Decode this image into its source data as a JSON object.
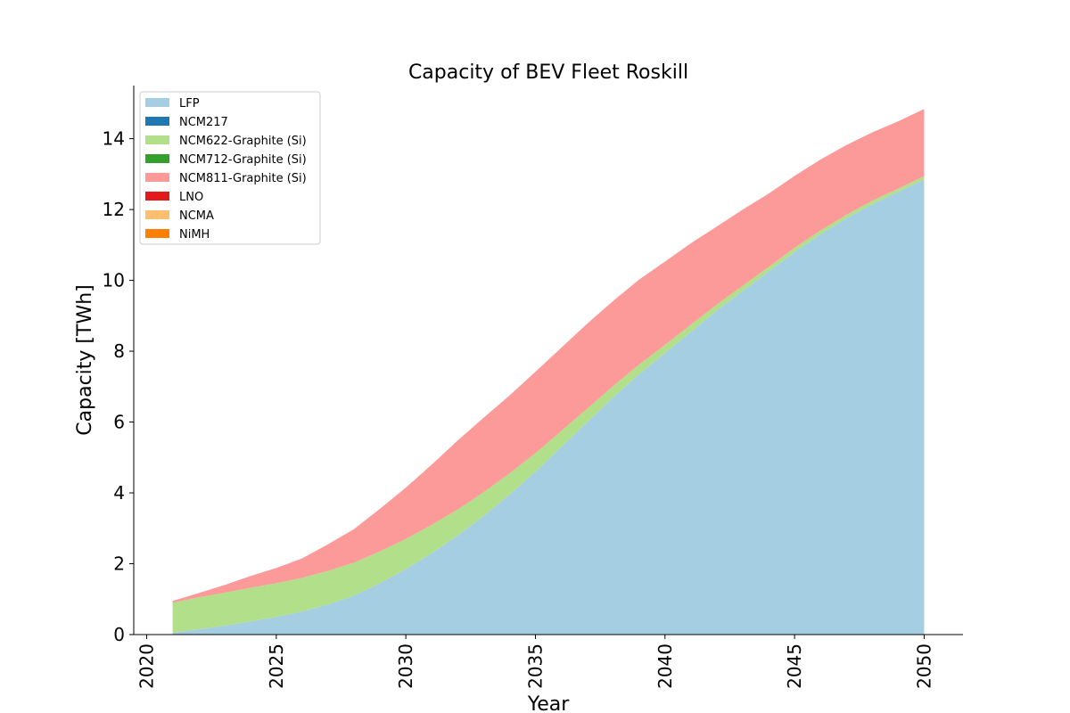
{
  "chart_data": {
    "type": "area",
    "stacked": true,
    "title": "Capacity of BEV Fleet Roskill",
    "xlabel": "Year",
    "ylabel": "Capacity [TWh]",
    "xlim": [
      2019.5,
      2051.5
    ],
    "ylim": [
      0,
      15.5
    ],
    "xticks": [
      2020,
      2025,
      2030,
      2035,
      2040,
      2045,
      2050
    ],
    "yticks": [
      0,
      2,
      4,
      6,
      8,
      10,
      12,
      14
    ],
    "grid": false,
    "legend_position": "top-left",
    "x": [
      2021,
      2022,
      2023,
      2024,
      2025,
      2026,
      2027,
      2028,
      2029,
      2030,
      2031,
      2032,
      2033,
      2034,
      2035,
      2036,
      2037,
      2038,
      2039,
      2040,
      2041,
      2042,
      2043,
      2044,
      2045,
      2046,
      2047,
      2048,
      2049,
      2050
    ],
    "series": [
      {
        "name": "LFP",
        "color": "#a6cee3",
        "values": [
          0.05,
          0.15,
          0.25,
          0.37,
          0.5,
          0.65,
          0.85,
          1.1,
          1.45,
          1.85,
          2.3,
          2.8,
          3.35,
          3.95,
          4.6,
          5.3,
          6.0,
          6.7,
          7.35,
          7.95,
          8.55,
          9.15,
          9.7,
          10.25,
          10.8,
          11.3,
          11.75,
          12.15,
          12.5,
          12.85
        ]
      },
      {
        "name": "NCM217",
        "color": "#1f78b4",
        "values": [
          0,
          0,
          0,
          0,
          0,
          0,
          0,
          0,
          0,
          0,
          0,
          0,
          0,
          0,
          0,
          0,
          0,
          0,
          0,
          0,
          0,
          0,
          0,
          0,
          0,
          0,
          0,
          0,
          0,
          0
        ]
      },
      {
        "name": "NCM622-Graphite (Si)",
        "color": "#b2df8a",
        "values": [
          0.85,
          0.9,
          0.93,
          0.95,
          0.95,
          0.95,
          0.95,
          0.93,
          0.9,
          0.85,
          0.8,
          0.73,
          0.67,
          0.6,
          0.52,
          0.45,
          0.38,
          0.32,
          0.27,
          0.23,
          0.2,
          0.17,
          0.15,
          0.13,
          0.12,
          0.11,
          0.1,
          0.1,
          0.09,
          0.09
        ]
      },
      {
        "name": "NCM712-Graphite (Si)",
        "color": "#33a02c",
        "values": [
          0,
          0,
          0,
          0,
          0,
          0,
          0,
          0,
          0,
          0,
          0,
          0,
          0,
          0,
          0,
          0,
          0,
          0,
          0,
          0,
          0,
          0,
          0,
          0,
          0,
          0,
          0,
          0,
          0,
          0
        ]
      },
      {
        "name": "NCM811-Graphite (Si)",
        "color": "#fb9a99",
        "values": [
          0.05,
          0.12,
          0.22,
          0.33,
          0.43,
          0.55,
          0.75,
          0.95,
          1.2,
          1.45,
          1.7,
          1.95,
          2.1,
          2.2,
          2.3,
          2.35,
          2.4,
          2.4,
          2.4,
          2.35,
          2.3,
          2.2,
          2.15,
          2.07,
          2.03,
          2.0,
          1.97,
          1.93,
          1.9,
          1.9
        ]
      },
      {
        "name": "LNO",
        "color": "#e31a1c",
        "values": [
          0,
          0,
          0,
          0,
          0,
          0,
          0,
          0,
          0,
          0,
          0,
          0,
          0,
          0,
          0,
          0,
          0,
          0,
          0,
          0,
          0,
          0,
          0,
          0,
          0,
          0,
          0,
          0,
          0,
          0
        ]
      },
      {
        "name": "NCMA",
        "color": "#fdbf6f",
        "values": [
          0,
          0,
          0,
          0,
          0,
          0,
          0,
          0,
          0,
          0,
          0,
          0,
          0,
          0,
          0,
          0,
          0,
          0,
          0,
          0,
          0,
          0,
          0,
          0,
          0,
          0,
          0,
          0,
          0,
          0
        ]
      },
      {
        "name": "NiMH",
        "color": "#ff7f00",
        "values": [
          0,
          0,
          0,
          0,
          0,
          0,
          0,
          0,
          0,
          0,
          0,
          0,
          0,
          0,
          0,
          0,
          0,
          0,
          0,
          0,
          0,
          0,
          0,
          0,
          0,
          0,
          0,
          0,
          0,
          0
        ]
      }
    ]
  }
}
